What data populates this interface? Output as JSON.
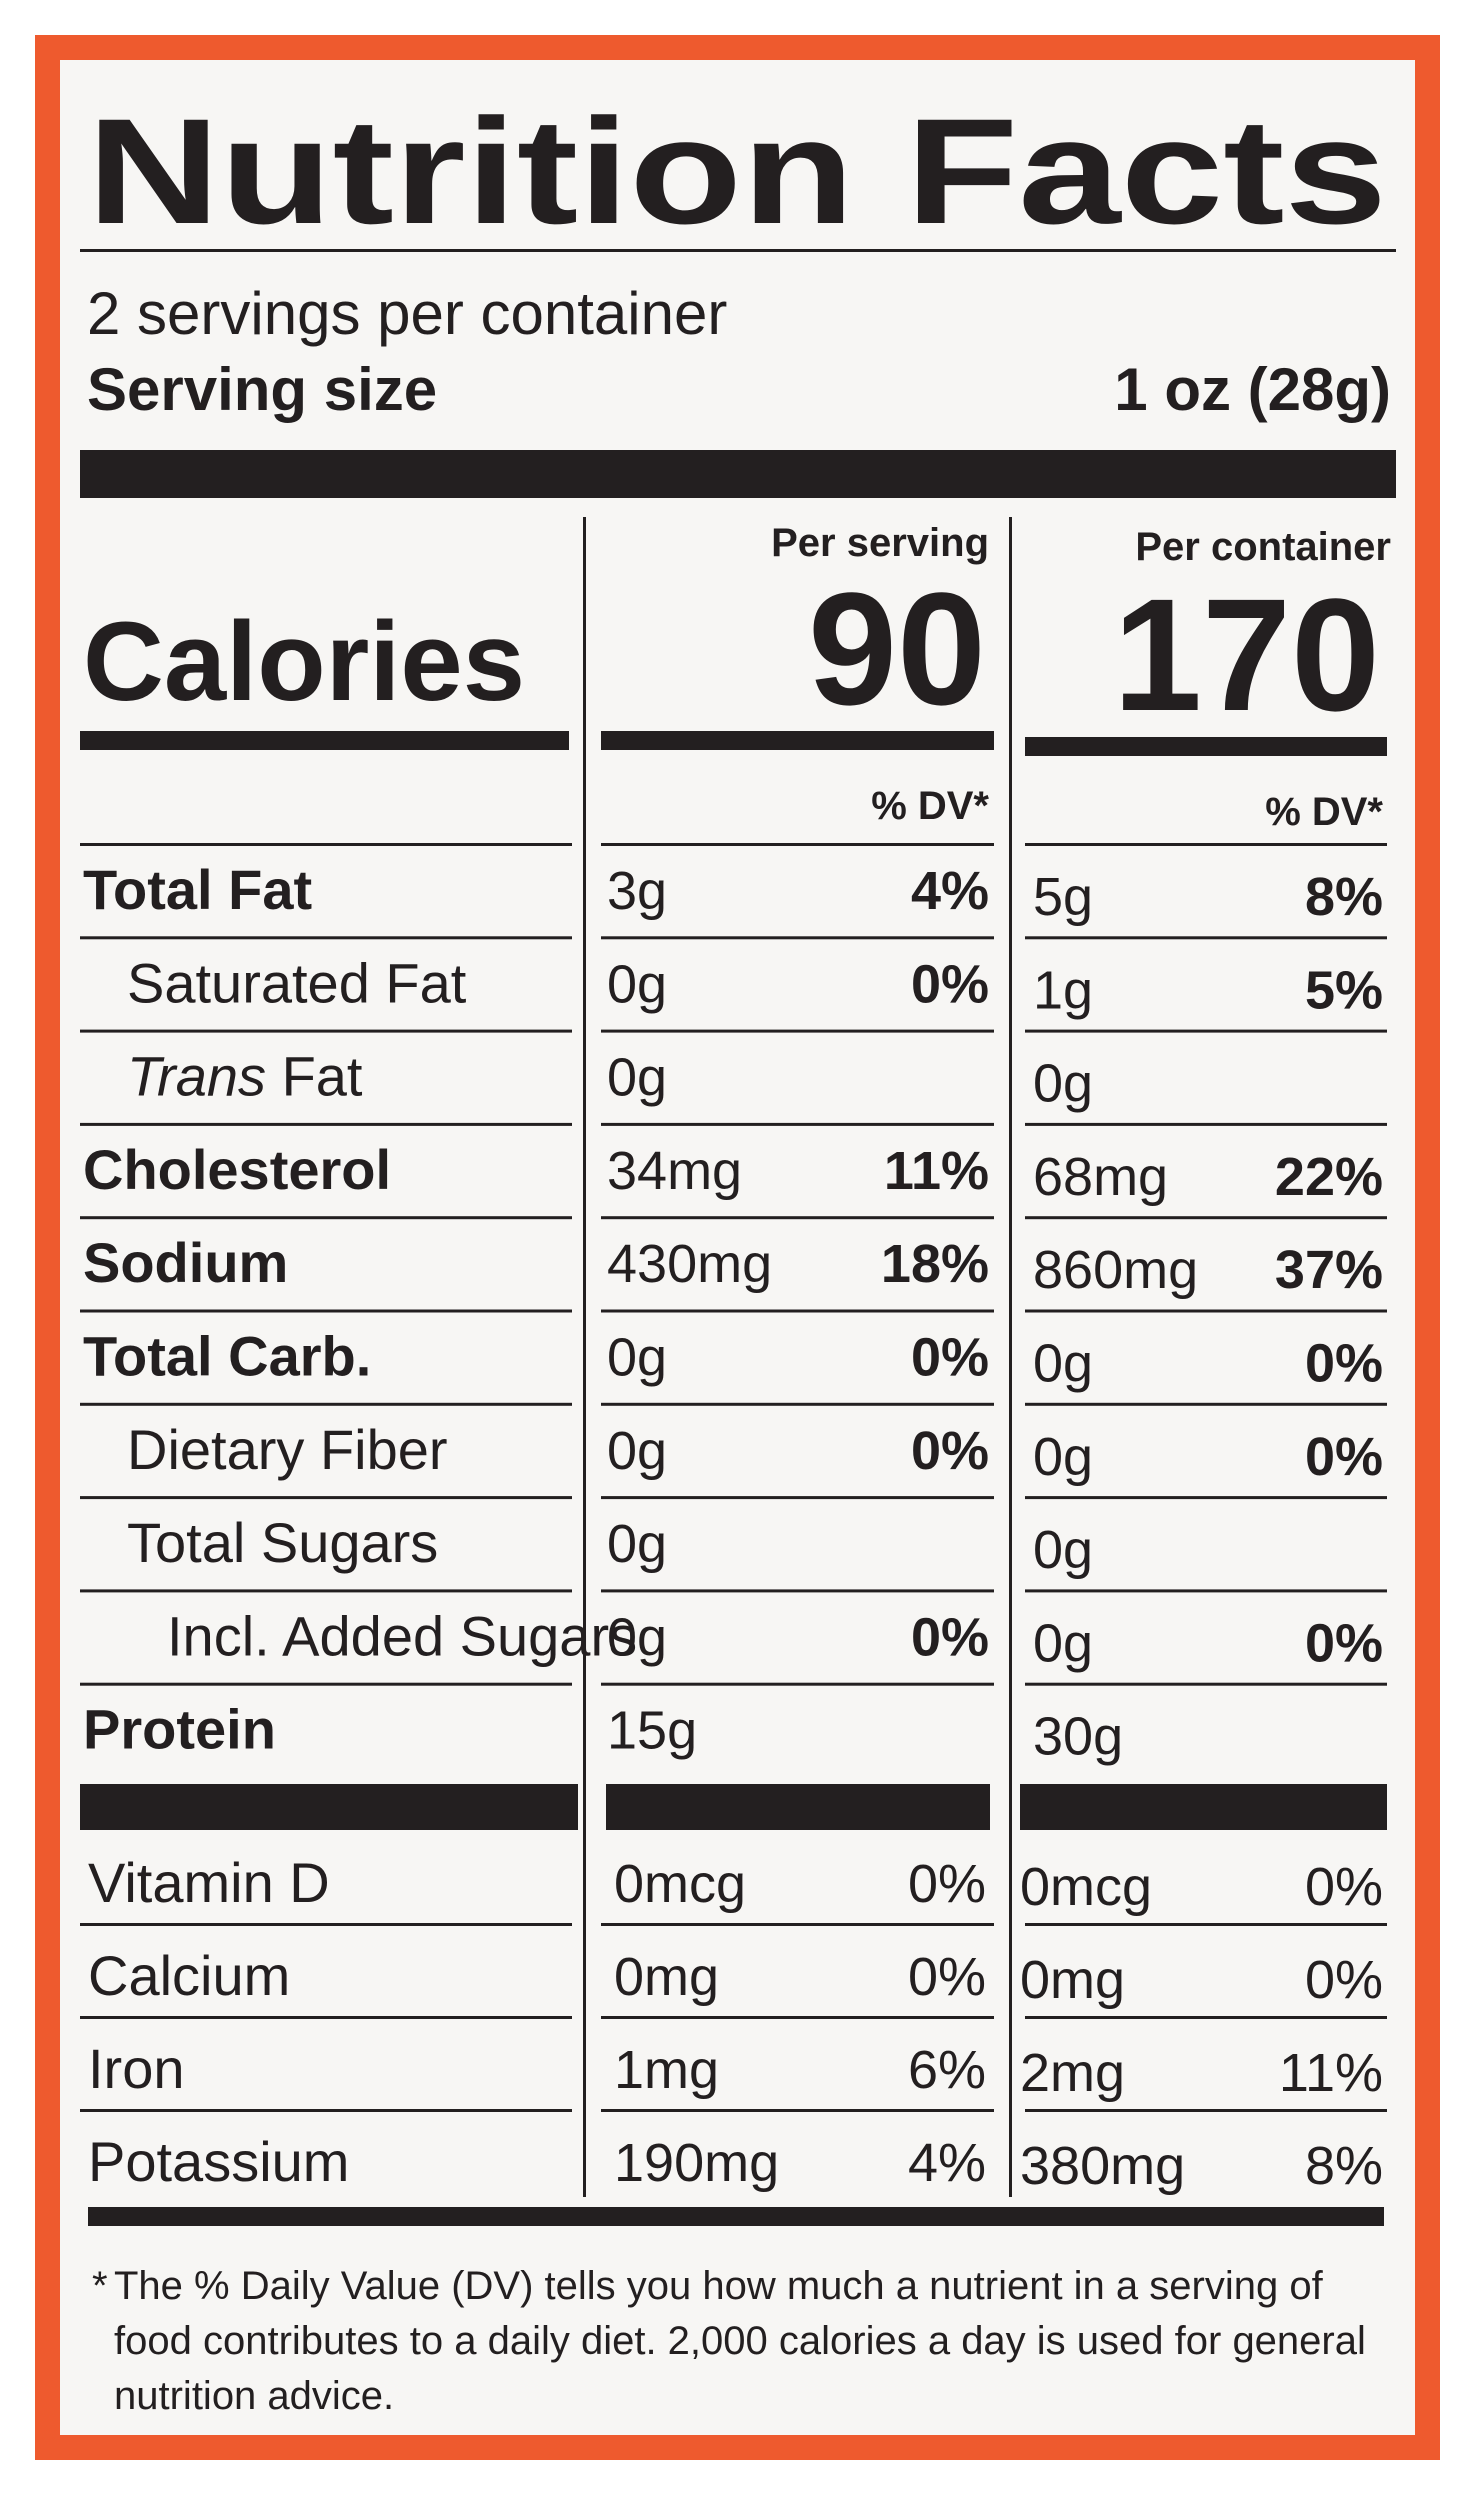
{
  "title": "Nutrition Facts",
  "servings": "2 servings per container",
  "serving_size": {
    "label": "Serving size",
    "value": "1 oz (28g)"
  },
  "calories": {
    "label": "Calories",
    "per_serving": {
      "header": "Per serving",
      "value": 90,
      "dv_header": "% DV*"
    },
    "per_container": {
      "header": "Per container",
      "value": 170,
      "dv_header": "% DV*"
    }
  },
  "nutrients": [
    {
      "label": "Total Fat",
      "serving_amount": "3g",
      "serving_dv": "4%",
      "container_amount": "5g",
      "container_dv": "8%"
    },
    {
      "label": "Saturated Fat",
      "serving_amount": "0g",
      "serving_dv": "0%",
      "container_amount": "1g",
      "container_dv": "5%"
    },
    {
      "label_prefix": "Trans",
      "label": "Fat",
      "serving_amount": "0g",
      "container_amount": "0g"
    },
    {
      "label": "Cholesterol",
      "serving_amount": "34mg",
      "serving_dv": "11%",
      "container_amount": "68mg",
      "container_dv": "22%"
    },
    {
      "label": "Sodium",
      "serving_amount": "430mg",
      "serving_dv": "18%",
      "container_amount": "860mg",
      "container_dv": "37%"
    },
    {
      "label": "Total Carb.",
      "serving_amount": "0g",
      "serving_dv": "0%",
      "container_amount": "0g",
      "container_dv": "0%"
    },
    {
      "label": "Dietary Fiber",
      "serving_amount": "0g",
      "serving_dv": "0%",
      "container_amount": "0g",
      "container_dv": "0%"
    },
    {
      "label": "Total Sugars",
      "serving_amount": "0g",
      "container_amount": "0g"
    },
    {
      "label": "Incl. Added Sugars",
      "serving_amount": "0g",
      "serving_dv": "0%",
      "container_amount": "0g",
      "container_dv": "0%"
    },
    {
      "label": "Protein",
      "serving_amount": "15g",
      "container_amount": "30g"
    }
  ],
  "vitamins": [
    {
      "label": "Vitamin D",
      "serving_amount": "0mcg",
      "serving_dv": "0%",
      "container_amount": "0mcg",
      "container_dv": "0%"
    },
    {
      "label": "Calcium",
      "serving_amount": "0mg",
      "serving_dv": "0%",
      "container_amount": "0mg",
      "container_dv": "0%"
    },
    {
      "label": "Iron",
      "serving_amount": "1mg",
      "serving_dv": "6%",
      "container_amount": "2mg",
      "container_dv": "11%"
    },
    {
      "label": "Potassium",
      "serving_amount": "190mg",
      "serving_dv": "4%",
      "container_amount": "380mg",
      "container_dv": "8%"
    }
  ],
  "footnote": {
    "marker": "*",
    "lines": [
      "The % Daily Value (DV) tells you how much a nutrient in a serving of",
      "food contributes to a daily diet. 2,000 calories a day is used for general",
      "nutrition advice."
    ]
  }
}
